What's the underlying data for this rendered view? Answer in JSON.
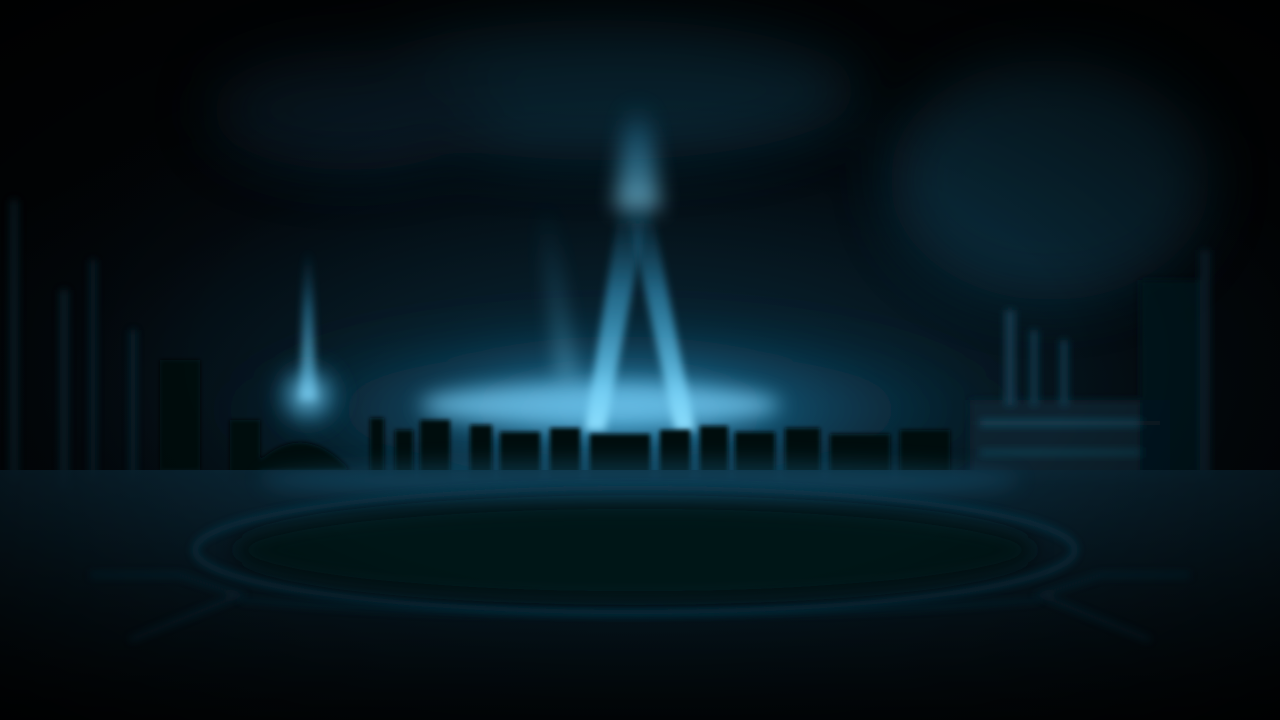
{
  "scene": {
    "description_visible_text": [],
    "colors": {
      "sky_dark": "#03080c",
      "glow": "#1f8fc4",
      "beam": "#6fd2ff",
      "floor_ring": "#0d3244",
      "silhouette": "#020608"
    }
  }
}
